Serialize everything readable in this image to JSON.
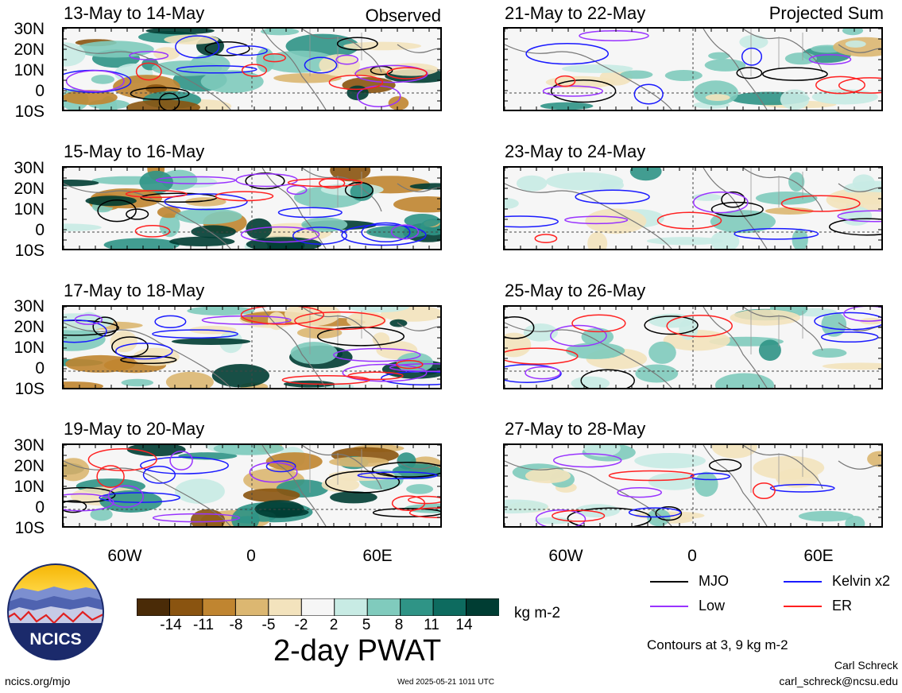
{
  "panels": {
    "left_header": "Observed",
    "right_header": "Projected Sum",
    "left": [
      {
        "title": "13-May to 14-May"
      },
      {
        "title": "15-May to 16-May"
      },
      {
        "title": "17-May to 18-May"
      },
      {
        "title": "19-May to 20-May"
      }
    ],
    "right": [
      {
        "title": "21-May to 22-May"
      },
      {
        "title": "23-May to 24-May"
      },
      {
        "title": "25-May to 26-May"
      },
      {
        "title": "27-May to 28-May"
      }
    ],
    "lat_labels": [
      "30N",
      "20N",
      "10N",
      "0",
      "10S"
    ],
    "lon_labels": [
      "60W",
      "0",
      "60E"
    ]
  },
  "colorbar": {
    "ticks": [
      "-14",
      "-11",
      "-8",
      "-5",
      "-2",
      "2",
      "5",
      "8",
      "11",
      "14"
    ],
    "colors": [
      "#4a2b07",
      "#8a5410",
      "#c08530",
      "#dcb771",
      "#f3e3bd",
      "#f6f6f6",
      "#c8ebe4",
      "#80cbbd",
      "#2f9486",
      "#0d6b5f",
      "#003d33"
    ],
    "units": "kg m-2",
    "title": "2-day PWAT"
  },
  "legend": {
    "mjo": "MJO",
    "kelvin": "Kelvin x2",
    "low": "Low",
    "er": "ER",
    "contours_note": "Contours at 3, 9 kg m-2",
    "colors": {
      "mjo": "#000000",
      "kelvin": "#1a1aff",
      "low": "#9933ff",
      "er": "#ff2020"
    }
  },
  "logo": {
    "text": "NCICS"
  },
  "footer": {
    "url": "ncics.org/mjo",
    "timestamp": "Wed 2025-05-21 1011 UTC",
    "author": "Carl Schreck",
    "email": "carl_schreck@ncsu.edu"
  }
}
